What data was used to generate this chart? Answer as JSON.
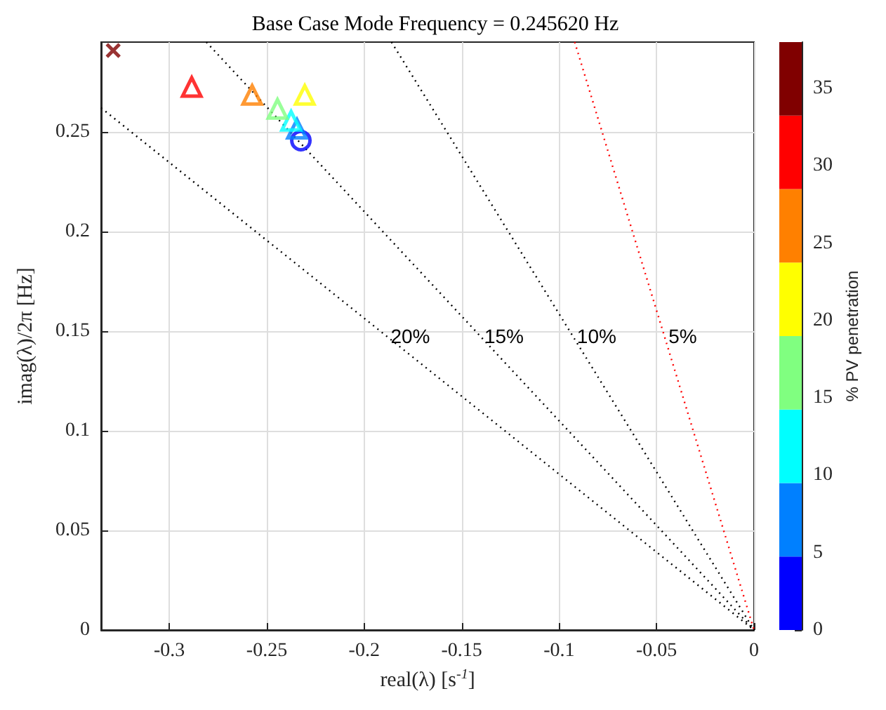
{
  "chart_data": {
    "type": "scatter",
    "title": "Base Case Mode Frequency = 0.245620 Hz",
    "xlabel": "real(λ) [s$^{-1}$]",
    "ylabel": "imag(λ)/2π [Hz]",
    "clabel": "% PV penetration",
    "xlim": [
      -0.335,
      0
    ],
    "ylim": [
      0,
      0.295
    ],
    "xticks": [
      -0.3,
      -0.25,
      -0.2,
      -0.15,
      -0.1,
      -0.05,
      0
    ],
    "yticks": [
      0,
      0.05,
      0.1,
      0.15,
      0.2,
      0.25
    ],
    "clim": [
      0,
      38
    ],
    "cticks": [
      0,
      5,
      10,
      15,
      20,
      25,
      30,
      35
    ],
    "grid": true,
    "series": [
      {
        "type": "line",
        "name": "20%",
        "x": [
          -0.335,
          0
        ],
        "values": [
          0.262,
          0
        ],
        "color": "#000000",
        "line_style": "dotted",
        "marker": "none"
      },
      {
        "type": "line",
        "name": "15%",
        "x": [
          -0.281,
          0
        ],
        "values": [
          0.295,
          0
        ],
        "color": "#000000",
        "line_style": "dotted",
        "marker": "none"
      },
      {
        "type": "line",
        "name": "10%",
        "x": [
          -0.186,
          0
        ],
        "values": [
          0.295,
          0
        ],
        "color": "#000000",
        "line_style": "dotted",
        "marker": "none"
      },
      {
        "type": "line",
        "name": "5%",
        "x": [
          -0.092,
          0
        ],
        "values": [
          0.295,
          0
        ],
        "color": "#ff0000",
        "line_style": "dotted",
        "marker": "none"
      },
      {
        "marker": "circle",
        "x": [
          -0.2325
        ],
        "values": [
          0.2456
        ],
        "colors": [
          "#0000ff"
        ]
      },
      {
        "marker": "triangle",
        "x": [
          -0.2345,
          -0.2375,
          -0.2445,
          -0.2305,
          -0.2575,
          -0.2885
        ],
        "values": [
          0.2515,
          0.2555,
          0.2615,
          0.2685,
          0.2685,
          0.2725
        ],
        "colors": [
          "#0080ff",
          "#00ffff",
          "#80ff80",
          "#ffff00",
          "#ff8000",
          "#ff0000"
        ]
      },
      {
        "marker": "cross",
        "x": [
          -0.3288
        ],
        "values": [
          0.2908
        ],
        "colors": [
          "#800000"
        ]
      }
    ]
  }
}
